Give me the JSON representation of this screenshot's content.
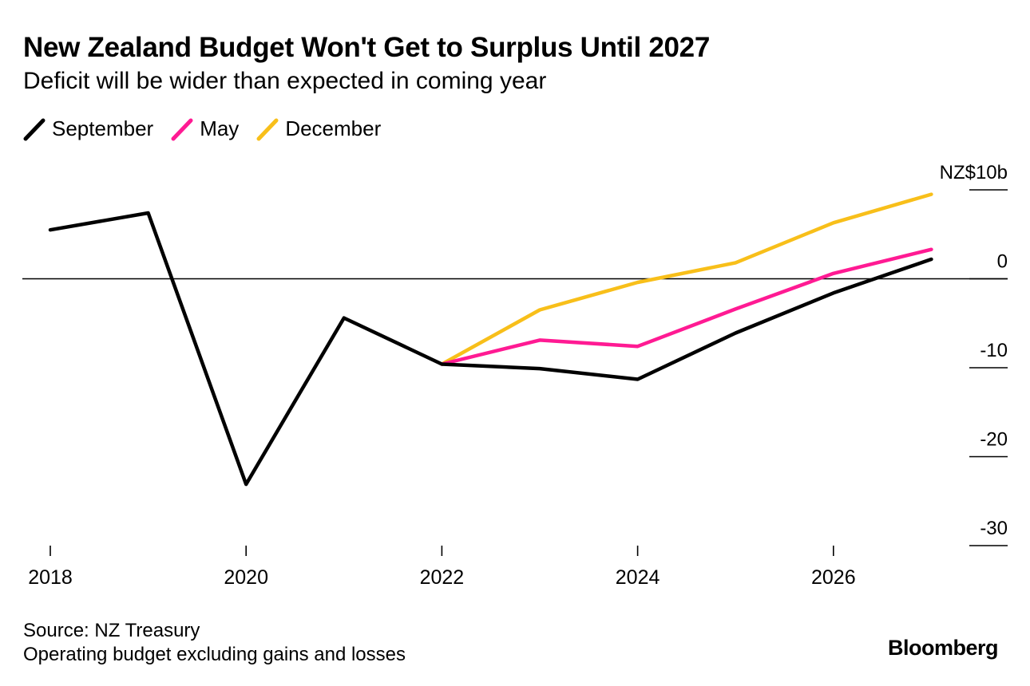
{
  "chart_data": {
    "type": "line",
    "title": "New Zealand Budget Won't Get to Surplus Until 2027",
    "subtitle": "Deficit will be wider than expected in coming year",
    "x": [
      2018,
      2019,
      2020,
      2021,
      2022,
      2023,
      2024,
      2025,
      2026,
      2027
    ],
    "x_ticks": [
      2018,
      2020,
      2022,
      2024,
      2026
    ],
    "x_tick_labels": [
      "2018",
      "2020",
      "2022",
      "2024",
      "2026"
    ],
    "ylim": [
      -30,
      10
    ],
    "y_ticks": [
      10,
      0,
      -10,
      -20,
      -30
    ],
    "y_tick_labels": [
      "NZ$10b",
      "0",
      "-10",
      "-20",
      "-30"
    ],
    "zero_line": true,
    "legend_position": "top-left",
    "series": [
      {
        "name": "December",
        "color": "#f8bf1a",
        "x": [
          2022,
          2023,
          2024,
          2025,
          2026,
          2027
        ],
        "values": [
          -9.6,
          -3.5,
          -0.4,
          1.8,
          6.3,
          9.5
        ]
      },
      {
        "name": "May",
        "color": "#ff1a93",
        "x": [
          2022,
          2023,
          2024,
          2025,
          2026,
          2027
        ],
        "values": [
          -9.6,
          -6.9,
          -7.6,
          -3.4,
          0.6,
          3.3
        ]
      },
      {
        "name": "September",
        "color": "#000000",
        "x": [
          2018,
          2019,
          2020,
          2021,
          2022,
          2023,
          2024,
          2025,
          2026,
          2027
        ],
        "values": [
          5.5,
          7.4,
          -23.1,
          -4.4,
          -9.6,
          -10.1,
          -11.3,
          -6.1,
          -1.6,
          2.2
        ]
      }
    ],
    "legend_order": [
      "September",
      "May",
      "December"
    ]
  },
  "footer": {
    "source": "Source: NZ Treasury",
    "note": "Operating budget excluding gains and losses",
    "brand": "Bloomberg"
  }
}
